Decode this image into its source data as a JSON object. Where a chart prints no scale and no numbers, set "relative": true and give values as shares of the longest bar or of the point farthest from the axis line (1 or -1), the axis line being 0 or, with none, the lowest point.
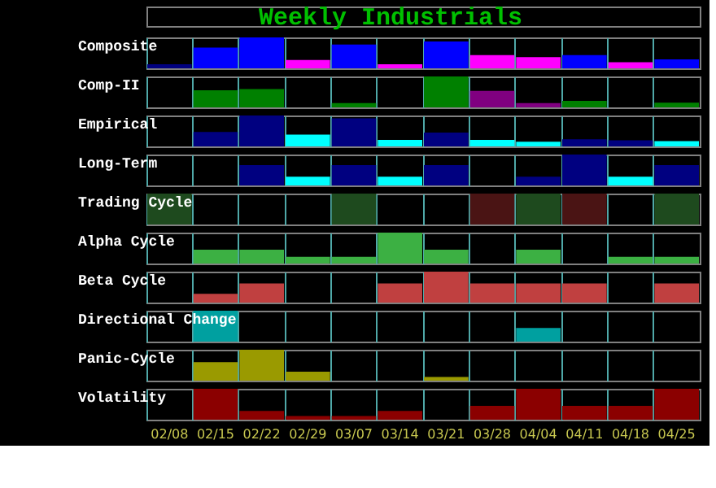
{
  "chart_data": [
    {
      "type": "other",
      "title": "Weekly Industrials"
    },
    {
      "type": "bar",
      "title": "Composite",
      "relative": true,
      "grid": "x",
      "tick_labels": false,
      "categories": [
        null,
        null,
        null,
        null,
        null,
        null,
        null,
        null,
        null,
        null,
        null,
        null
      ],
      "values": [
        0.13,
        0.67,
        1,
        0.27,
        0.77,
        0.13,
        0.87,
        0.43,
        0.36,
        0.43,
        0.2,
        0.29
      ],
      "colors": [
        "#000080",
        "#0000ff",
        "#0000ff",
        "#ff00ff",
        "#0000ff",
        "#ff00ff",
        "#0000ff",
        "#ff00ff",
        "#ff00ff",
        "#0000ff",
        "#ff00ff",
        "#0000ff"
      ]
    },
    {
      "type": "bar",
      "title": "Comp-II",
      "relative": true,
      "grid": "x",
      "tick_labels": false,
      "categories": [
        null,
        null,
        null,
        null,
        null,
        null,
        null,
        null,
        null,
        null,
        null,
        null
      ],
      "values": [
        0,
        0.55,
        0.59,
        0,
        0.14,
        0,
        1,
        0.53,
        0.14,
        0.21,
        0,
        0.15
      ],
      "colors": [
        "#008000",
        "#008000",
        "#008000",
        "#008000",
        "#008000",
        "#008000",
        "#008000",
        "#800080",
        "#800080",
        "#008000",
        "#008000",
        "#008000"
      ]
    },
    {
      "type": "bar",
      "title": "Empirical",
      "relative": true,
      "grid": "x",
      "tick_labels": false,
      "categories": [
        null,
        null,
        null,
        null,
        null,
        null,
        null,
        null,
        null,
        null,
        null,
        null
      ],
      "values": [
        0,
        0.47,
        1,
        0.38,
        0.91,
        0.21,
        0.45,
        0.21,
        0.15,
        0.23,
        0.2,
        0.17
      ],
      "colors": [
        "#000080",
        "#000080",
        "#000080",
        "#00ffff",
        "#000080",
        "#00ffff",
        "#000080",
        "#00ffff",
        "#00ffff",
        "#000080",
        "#000080",
        "#00ffff"
      ]
    },
    {
      "type": "bar",
      "title": "Long-Term",
      "relative": true,
      "grid": "x",
      "tick_labels": false,
      "categories": [
        null,
        null,
        null,
        null,
        null,
        null,
        null,
        null,
        null,
        null,
        null,
        null
      ],
      "values": [
        0,
        0,
        0.66,
        0.28,
        0.66,
        0.28,
        0.66,
        0,
        0.28,
        1,
        0.28,
        0.66
      ],
      "colors": [
        "#000080",
        "#000080",
        "#000080",
        "#00ffff",
        "#000080",
        "#00ffff",
        "#000080",
        "#000080",
        "#000080",
        "#000080",
        "#00ffff",
        "#000080"
      ]
    },
    {
      "type": "bar",
      "title": "Trading Cycle",
      "relative": true,
      "grid": "x",
      "tick_labels": false,
      "categories": [
        null,
        null,
        null,
        null,
        null,
        null,
        null,
        null,
        null,
        null,
        null,
        null
      ],
      "values": [
        1,
        0,
        0,
        0,
        1,
        0,
        0,
        1,
        1,
        1,
        0,
        1
      ],
      "colors": [
        "#1e4a1e",
        "#1e4a1e",
        "#1e4a1e",
        "#1e4a1e",
        "#1e4a1e",
        "#1e4a1e",
        "#1e4a1e",
        "#4a1414",
        "#1e4a1e",
        "#4a1414",
        "#1e4a1e",
        "#1e4a1e"
      ]
    },
    {
      "type": "bar",
      "title": "Alpha Cycle",
      "relative": true,
      "grid": "x",
      "tick_labels": false,
      "categories": [
        null,
        null,
        null,
        null,
        null,
        null,
        null,
        null,
        null,
        null,
        null,
        null
      ],
      "values": [
        0,
        0.45,
        0.45,
        0.22,
        0.22,
        1,
        0.45,
        0,
        0.45,
        0,
        0.22,
        0.22
      ],
      "colors": [
        "#3cb043",
        "#3cb043",
        "#3cb043",
        "#3cb043",
        "#3cb043",
        "#3cb043",
        "#3cb043",
        "#3cb043",
        "#3cb043",
        "#3cb043",
        "#3cb043",
        "#3cb043"
      ]
    },
    {
      "type": "bar",
      "title": "Beta Cycle",
      "relative": true,
      "grid": "x",
      "tick_labels": false,
      "categories": [
        null,
        null,
        null,
        null,
        null,
        null,
        null,
        null,
        null,
        null,
        null,
        null
      ],
      "values": [
        0,
        0.28,
        0.62,
        0,
        0,
        0.62,
        1,
        0.62,
        0.62,
        0.62,
        0,
        0.62
      ],
      "colors": [
        "#c04040",
        "#c04040",
        "#c04040",
        "#c04040",
        "#c04040",
        "#c04040",
        "#c04040",
        "#c04040",
        "#c04040",
        "#c04040",
        "#c04040",
        "#c04040"
      ]
    },
    {
      "type": "bar",
      "title": "Directional Change",
      "relative": true,
      "grid": "x",
      "tick_labels": false,
      "categories": [
        null,
        null,
        null,
        null,
        null,
        null,
        null,
        null,
        null,
        null,
        null,
        null
      ],
      "values": [
        0,
        1,
        0,
        0,
        0,
        0,
        0,
        0,
        0.44,
        0,
        0,
        0
      ],
      "colors": [
        "#00a0a0",
        "#00a0a0",
        "#00a0a0",
        "#00a0a0",
        "#00a0a0",
        "#00a0a0",
        "#00a0a0",
        "#00a0a0",
        "#00a0a0",
        "#00a0a0",
        "#00a0a0",
        "#00a0a0"
      ]
    },
    {
      "type": "bar",
      "title": "Panic-Cycle",
      "relative": true,
      "grid": "x",
      "tick_labels": false,
      "categories": [
        null,
        null,
        null,
        null,
        null,
        null,
        null,
        null,
        null,
        null,
        null,
        null
      ],
      "values": [
        0,
        0.6,
        1,
        0.29,
        0,
        0,
        0.12,
        0,
        0,
        0,
        0,
        0
      ],
      "colors": [
        "#9a9a00",
        "#9a9a00",
        "#9a9a00",
        "#9a9a00",
        "#9a9a00",
        "#9a9a00",
        "#9a9a00",
        "#9a9a00",
        "#9a9a00",
        "#9a9a00",
        "#9a9a00",
        "#9a9a00"
      ]
    },
    {
      "type": "bar",
      "title": "Volatility",
      "relative": true,
      "grid": "x",
      "tick_labels": "x",
      "categories": [
        "02/08",
        "02/15",
        "02/22",
        "02/29",
        "03/07",
        "03/14",
        "03/21",
        "03/28",
        "04/04",
        "04/11",
        "04/18",
        "04/25"
      ],
      "values": [
        0,
        1,
        0.28,
        0.12,
        0.12,
        0.28,
        0,
        0.45,
        1,
        0.45,
        0.45,
        1
      ],
      "colors": [
        "#8b0000",
        "#8b0000",
        "#8b0000",
        "#8b0000",
        "#8b0000",
        "#8b0000",
        "#8b0000",
        "#8b0000",
        "#8b0000",
        "#8b0000",
        "#8b0000",
        "#8b0000"
      ]
    }
  ]
}
